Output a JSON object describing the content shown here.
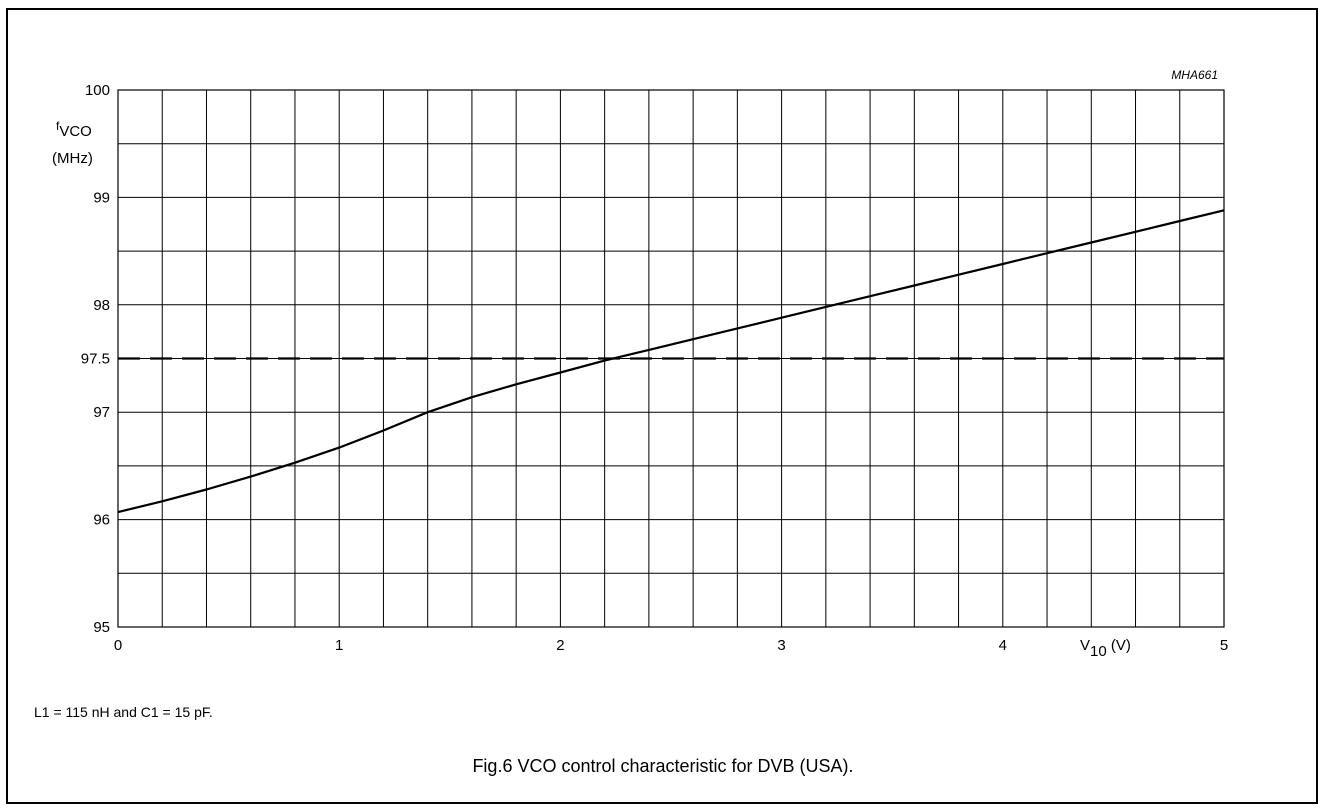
{
  "figure": {
    "code": "MHA661",
    "note": "L1 = 115 nH and C1 = 15 pF.",
    "caption": "Fig.6  VCO control characteristic for DVB (USA)."
  },
  "chart_data": {
    "type": "line",
    "title": "",
    "xlabel": {
      "main": "V",
      "sub": "10",
      "unit": " (V)"
    },
    "ylabel": {
      "sup": "f",
      "main": "VCO",
      "unit": "(MHz)"
    },
    "xlim": [
      0,
      5
    ],
    "ylim": [
      95,
      100
    ],
    "xticks": [
      0,
      1,
      2,
      3,
      4,
      5
    ],
    "yticks": [
      95,
      96,
      97,
      97.5,
      98,
      99,
      100
    ],
    "grid": true,
    "series": [
      {
        "style": "solid",
        "x": [
          0,
          0.2,
          0.4,
          0.6,
          0.8,
          1.0,
          1.2,
          1.4,
          1.6,
          1.8,
          2.0,
          2.2,
          2.4,
          2.6,
          2.8,
          3.0,
          3.2,
          3.4,
          3.6,
          3.8,
          4.0,
          4.2,
          4.4,
          4.6,
          4.8,
          5.0
        ],
        "y": [
          96.07,
          96.17,
          96.28,
          96.4,
          96.53,
          96.67,
          96.83,
          97.0,
          97.14,
          97.26,
          97.37,
          97.48,
          97.58,
          97.68,
          97.78,
          97.88,
          97.98,
          98.08,
          98.18,
          98.28,
          98.38,
          98.48,
          98.58,
          98.68,
          98.78,
          98.88
        ]
      },
      {
        "style": "dashed",
        "x": [
          0,
          5
        ],
        "y": [
          97.5,
          97.5
        ]
      }
    ]
  }
}
